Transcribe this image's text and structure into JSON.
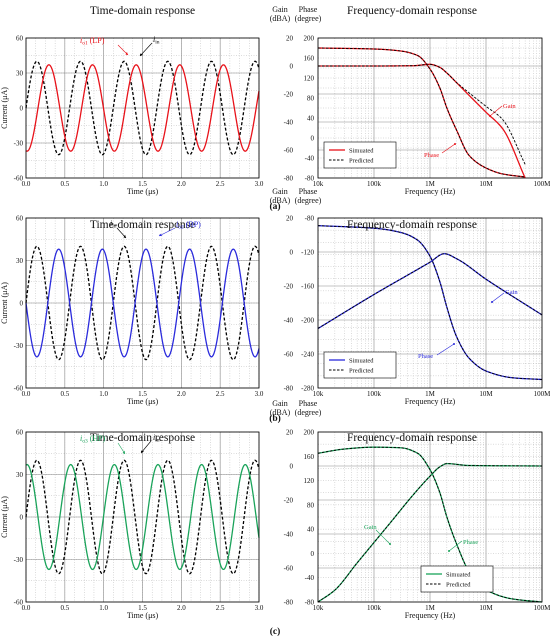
{
  "chart_data": [
    {
      "panel": "(a)",
      "type": "line",
      "title": "Time-domain response",
      "xlabel": "Time (μs)",
      "ylabel": "Current (μA)",
      "xlim": [
        0,
        3
      ],
      "ylim": [
        -60,
        60
      ],
      "x_ticks": [
        "0.0",
        "0.5",
        "1.0",
        "1.5",
        "2.0",
        "2.5",
        "3.0"
      ],
      "y_ticks": [
        "60",
        "30",
        "0",
        "-30",
        "-60"
      ],
      "grid": true,
      "series": [
        {
          "name": "iin",
          "color": "#000000",
          "dash": "dashed",
          "amplitude": 40,
          "frequency_MHz": 1.78,
          "phase_deg": 0,
          "x": [
            0,
            0.14,
            0.28,
            0.42,
            0.56,
            0.7,
            1.0,
            1.5,
            2.0,
            2.5,
            3.0
          ],
          "y": [
            0,
            40,
            0,
            -40,
            0,
            40,
            -10,
            -40,
            37,
            6,
            -40
          ]
        },
        {
          "name": "iLP",
          "color": "#e8121a",
          "dash": "solid",
          "amplitude": 37,
          "frequency_MHz": 1.78,
          "phase_deg": -99,
          "x": [
            0,
            0.1,
            0.28,
            0.5,
            0.63,
            1.0,
            1.5,
            2.0,
            2.5,
            3.0
          ],
          "y": [
            0,
            -15,
            -37,
            5,
            37,
            24,
            -26,
            30,
            -5,
            -26
          ]
        }
      ],
      "annotations": [
        {
          "text": "i",
          "sub": "o1",
          "suffix": " (LP)",
          "color": "#e8121a"
        },
        {
          "text": "i",
          "sub": "in",
          "suffix": "",
          "color": "#000000"
        }
      ]
    },
    {
      "panel": "(a)",
      "type": "line",
      "title": "Frequency-domain response",
      "xlabel": "Frequency (Hz)",
      "ylabel_left": [
        "Gain",
        "(dBA)"
      ],
      "ylabel_right": [
        "Phase",
        "(degree)"
      ],
      "x_scale": "log",
      "xlim": [
        10000,
        100000000
      ],
      "x_ticks": [
        "10k",
        "100k",
        "1M",
        "10M",
        "100M"
      ],
      "gain_ticks": [
        "20",
        "0",
        "-20",
        "-40",
        "-60",
        "-80"
      ],
      "phase_ticks": [
        "200",
        "160",
        "120",
        "80",
        "40",
        "0",
        "-40",
        "-80"
      ],
      "gain_ylim": [
        -80,
        20
      ],
      "phase_ylim": [
        -80,
        200
      ],
      "grid": true,
      "legend": {
        "position": "bottom-left",
        "entries": [
          "Simuated",
          "Predicted"
        ]
      },
      "series": [
        {
          "name": "Gain",
          "axis": "gain",
          "color": "#e8121a",
          "x": [
            10000,
            30000,
            100000,
            500000,
            1000000,
            1500000,
            2000000,
            3000000,
            5000000,
            10000000,
            20000000,
            50000000
          ],
          "y": [
            0,
            0,
            0,
            0.2,
            1.2,
            -1,
            -5,
            -12,
            -21,
            -33,
            -45,
            -80
          ]
        },
        {
          "name": "Phase",
          "axis": "phase",
          "color": "#e8121a",
          "x": [
            10000,
            100000,
            300000,
            600000,
            1000000,
            1500000,
            2000000,
            3000000,
            5000000,
            10000000,
            20000000,
            50000000
          ],
          "y": [
            180,
            178,
            174,
            165,
            138,
            100,
            60,
            15,
            -35,
            -60,
            -72,
            -78
          ]
        }
      ],
      "annotations": [
        "Gain",
        "Phase"
      ]
    },
    {
      "panel": "(b)",
      "type": "line",
      "title": "Time-domain response",
      "xlabel": "Time (μs)",
      "ylabel": "Current (μA)",
      "xlim": [
        0,
        3
      ],
      "ylim": [
        -60,
        60
      ],
      "x_ticks": [
        "0.0",
        "0.5",
        "1.0",
        "1.5",
        "2.0",
        "2.5",
        "3.0"
      ],
      "y_ticks": [
        "60",
        "30",
        "0",
        "-30",
        "-60"
      ],
      "grid": true,
      "series": [
        {
          "name": "iin",
          "color": "#000000",
          "dash": "dashed",
          "amplitude": 40,
          "frequency_MHz": 1.78,
          "phase_deg": 0,
          "x": [
            0,
            0.14,
            0.28,
            0.42,
            0.56,
            1.0,
            1.5,
            2.0,
            2.5,
            3.0
          ],
          "y": [
            0,
            40,
            0,
            -40,
            0,
            -10,
            -40,
            37,
            6,
            -40
          ]
        },
        {
          "name": "iBP",
          "color": "#2b2bdc",
          "dash": "solid",
          "amplitude": 38,
          "frequency_MHz": 1.78,
          "phase_deg": 180,
          "x": [
            0,
            0.14,
            0.28,
            0.42,
            0.56,
            1.0,
            1.5,
            2.0,
            2.5,
            3.0
          ],
          "y": [
            0,
            -20,
            0,
            38,
            0,
            10,
            38,
            -35,
            -6,
            38
          ]
        }
      ],
      "annotations": [
        {
          "text": "i",
          "sub": "o2",
          "suffix": " (BP)",
          "color": "#2b2bdc"
        },
        {
          "text": "i",
          "sub": "in",
          "suffix": "",
          "color": "#000000"
        }
      ]
    },
    {
      "panel": "(b)",
      "type": "line",
      "title": "Frequency-domain response",
      "xlabel": "Frequency (Hz)",
      "ylabel_left": [
        "Gain",
        "(dBA)"
      ],
      "ylabel_right": [
        "Phase",
        "(degree)"
      ],
      "x_scale": "log",
      "xlim": [
        10000,
        100000000
      ],
      "x_ticks": [
        "10k",
        "100k",
        "1M",
        "10M",
        "100M"
      ],
      "gain_ticks": [
        "20",
        "0",
        "-20",
        "-40",
        "-60",
        "-80"
      ],
      "phase_ticks": [
        "-80",
        "-120",
        "-160",
        "-200",
        "-240",
        "-280"
      ],
      "gain_ylim": [
        -80,
        20
      ],
      "phase_ylim": [
        -280,
        -80
      ],
      "grid": true,
      "legend": {
        "position": "bottom-left",
        "entries": [
          "Simuated",
          "Predicted"
        ]
      },
      "series": [
        {
          "name": "Gain",
          "axis": "gain",
          "color": "#2b2bdc",
          "x": [
            10000,
            100000,
            1000000,
            1800000,
            3000000,
            10000000,
            100000000
          ],
          "y": [
            -45,
            -25,
            -6,
            -1,
            -4,
            -16,
            -37
          ]
        },
        {
          "name": "Phase",
          "axis": "phase",
          "color": "#2b2bdc",
          "x": [
            10000,
            100000,
            300000,
            600000,
            1000000,
            1500000,
            2000000,
            3000000,
            5000000,
            10000000,
            30000000,
            100000000
          ],
          "y": [
            -89,
            -92,
            -97,
            -106,
            -125,
            -155,
            -185,
            -220,
            -245,
            -260,
            -268,
            -270
          ]
        }
      ],
      "annotations": [
        "Gain",
        "Phase"
      ]
    },
    {
      "panel": "(c)",
      "type": "line",
      "title": "Time-domain response",
      "xlabel": "Time (μs)",
      "ylabel": "Current (μA)",
      "xlim": [
        0,
        3
      ],
      "ylim": [
        -60,
        60
      ],
      "x_ticks": [
        "0.0",
        "0.5",
        "1.0",
        "1.5",
        "2.0",
        "2.5",
        "3.0"
      ],
      "y_ticks": [
        "60",
        "30",
        "0",
        "-30",
        "-60"
      ],
      "grid": true,
      "series": [
        {
          "name": "iin",
          "color": "#000000",
          "dash": "dashed",
          "amplitude": 40,
          "frequency_MHz": 1.78,
          "phase_deg": 0,
          "x": [
            0,
            0.14,
            0.28,
            0.42,
            0.56,
            1.0,
            1.5,
            2.0,
            2.5,
            3.0
          ],
          "y": [
            0,
            40,
            0,
            -40,
            0,
            -10,
            -40,
            37,
            6,
            -40
          ]
        },
        {
          "name": "iHP",
          "color": "#1aa35a",
          "dash": "solid",
          "amplitude": 37,
          "frequency_MHz": 1.78,
          "phase_deg": 81,
          "x": [
            0,
            0.07,
            0.2,
            0.35,
            0.5,
            1.0,
            1.5,
            2.0,
            2.5,
            3.0
          ],
          "y": [
            0,
            18,
            37,
            0,
            -37,
            -33,
            22,
            -20,
            36,
            0
          ]
        }
      ],
      "annotations": [
        {
          "text": "i",
          "sub": "o3",
          "suffix": " (HP)",
          "color": "#1aa35a"
        },
        {
          "text": "i",
          "sub": "in",
          "suffix": "",
          "color": "#000000"
        }
      ]
    },
    {
      "panel": "(c)",
      "type": "line",
      "title": "Frequency-domain response",
      "xlabel": "Frequency (Hz)",
      "ylabel_left": [
        "Gain",
        "(dBA)"
      ],
      "ylabel_right": [
        "Phase",
        "(degree)"
      ],
      "x_scale": "log",
      "xlim": [
        10000,
        100000000
      ],
      "x_ticks": [
        "10k",
        "100k",
        "1M",
        "10M",
        "100M"
      ],
      "gain_ticks": [
        "20",
        "0",
        "-20",
        "-40",
        "-60",
        "-80"
      ],
      "phase_ticks": [
        "200",
        "160",
        "120",
        "80",
        "40",
        "0",
        "-40",
        "-80"
      ],
      "gain_ylim": [
        -80,
        20
      ],
      "phase_ylim": [
        -80,
        200
      ],
      "grid": true,
      "legend": {
        "position": "bottom-right",
        "entries": [
          "Simuated",
          "Predicted"
        ]
      },
      "series": [
        {
          "name": "Gain",
          "axis": "gain",
          "color": "#1aa35a",
          "x": [
            10000,
            20000,
            50000,
            100000,
            200000,
            500000,
            1000000,
            1500000,
            2000000,
            5000000,
            100000000
          ],
          "y": [
            -80,
            -73,
            -57,
            -45,
            -33,
            -17,
            -6,
            -0.5,
            1.4,
            0.3,
            0
          ]
        },
        {
          "name": "Phase",
          "axis": "phase",
          "color": "#1aa35a",
          "x": [
            10000,
            30000,
            100000,
            300000,
            600000,
            1000000,
            1500000,
            2000000,
            3000000,
            5000000,
            10000000,
            30000000,
            100000000
          ],
          "y": [
            165,
            172,
            175,
            174,
            165,
            138,
            100,
            60,
            15,
            -30,
            -60,
            -75,
            -80
          ]
        }
      ],
      "annotations": [
        "Gain",
        "Phase"
      ]
    }
  ],
  "panel_labels": [
    "(a)",
    "(b)",
    "(c)"
  ]
}
